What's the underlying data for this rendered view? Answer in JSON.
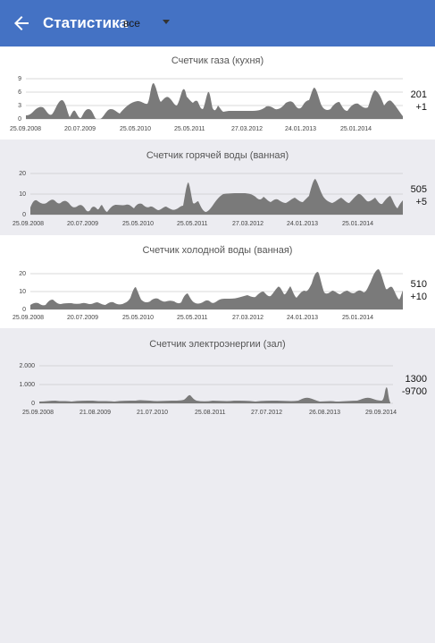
{
  "header": {
    "title": "Статистика",
    "period": "все"
  },
  "cards": [
    {
      "title": "Счетчик газа (кухня)",
      "value": "201",
      "delta": "+1",
      "yticks": [
        "9",
        "6",
        "3",
        "0"
      ],
      "xticks": [
        "25.09.2008",
        "20.07.2009",
        "25.05.2010",
        "25.05.2011",
        "27.03.2012",
        "24.01.2013",
        "25.01.2014"
      ]
    },
    {
      "title": "Счетчик горячей воды (ванная)",
      "value": "505",
      "delta": "+5",
      "yticks": [
        "20",
        "10",
        "0"
      ],
      "xticks": [
        "25.09.2008",
        "20.07.2009",
        "25.05.2010",
        "25.05.2011",
        "27.03.2012",
        "24.01.2013",
        "25.01.2014"
      ]
    },
    {
      "title": "Счетчик холодной воды (ванная)",
      "value": "510",
      "delta": "+10",
      "yticks": [
        "20",
        "10",
        "0"
      ],
      "xticks": [
        "25.09.2008",
        "20.07.2009",
        "25.05.2010",
        "25.05.2011",
        "27.03.2012",
        "24.01.2013",
        "25.01.2014"
      ]
    },
    {
      "title": "Счетчик электроэнергии (зал)",
      "value": "1300",
      "delta": "-9700",
      "yticks": [
        "2.000",
        "1.000",
        "0"
      ],
      "xticks": [
        "25.09.2008",
        "21.08.2009",
        "21.07.2010",
        "25.08.2011",
        "27.07.2012",
        "26.08.2013",
        "29.09.2014"
      ]
    }
  ],
  "colors": {
    "appbar": "#4472c4",
    "area": "#7a7a7a"
  },
  "icons": {
    "back": "arrow-back-icon",
    "dropdown": "dropdown-arrow-icon"
  }
}
